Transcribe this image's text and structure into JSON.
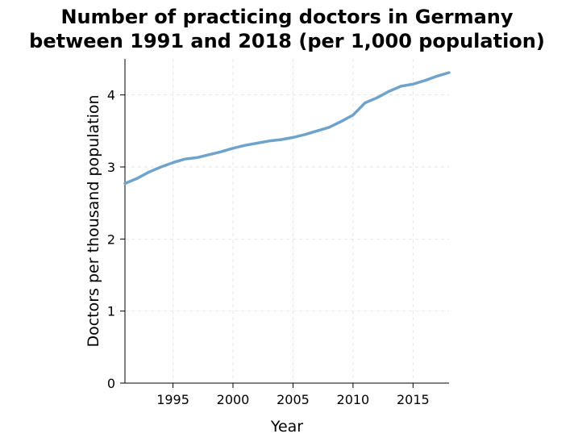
{
  "chart_data": {
    "type": "line",
    "title_line1": "Number of practicing doctors in Germany",
    "title_line2": "between 1991 and 2018 (per 1,000 population)",
    "xlabel": "Year",
    "ylabel": "Doctors per thousand population",
    "xlim": [
      1991,
      2018
    ],
    "ylim": [
      0,
      4.5
    ],
    "xticks": [
      1995,
      2000,
      2005,
      2010,
      2015
    ],
    "yticks": [
      0,
      1,
      2,
      3,
      4
    ],
    "grid": true,
    "line_color": "#6fa3cc",
    "series": [
      {
        "x": [
          1991,
          1992,
          1993,
          1994,
          1995,
          1996,
          1997,
          1998,
          1999,
          2000,
          2001,
          2002,
          2003,
          2004,
          2005,
          2006,
          2007,
          2008,
          2009,
          2010,
          2011,
          2012,
          2013,
          2014,
          2015,
          2016,
          2017,
          2018
        ],
        "values": [
          2.77,
          2.84,
          2.93,
          3.0,
          3.06,
          3.11,
          3.13,
          3.17,
          3.21,
          3.26,
          3.3,
          3.33,
          3.36,
          3.38,
          3.41,
          3.45,
          3.5,
          3.55,
          3.63,
          3.72,
          3.89,
          3.96,
          4.05,
          4.12,
          4.15,
          4.2,
          4.26,
          4.31
        ]
      }
    ]
  }
}
